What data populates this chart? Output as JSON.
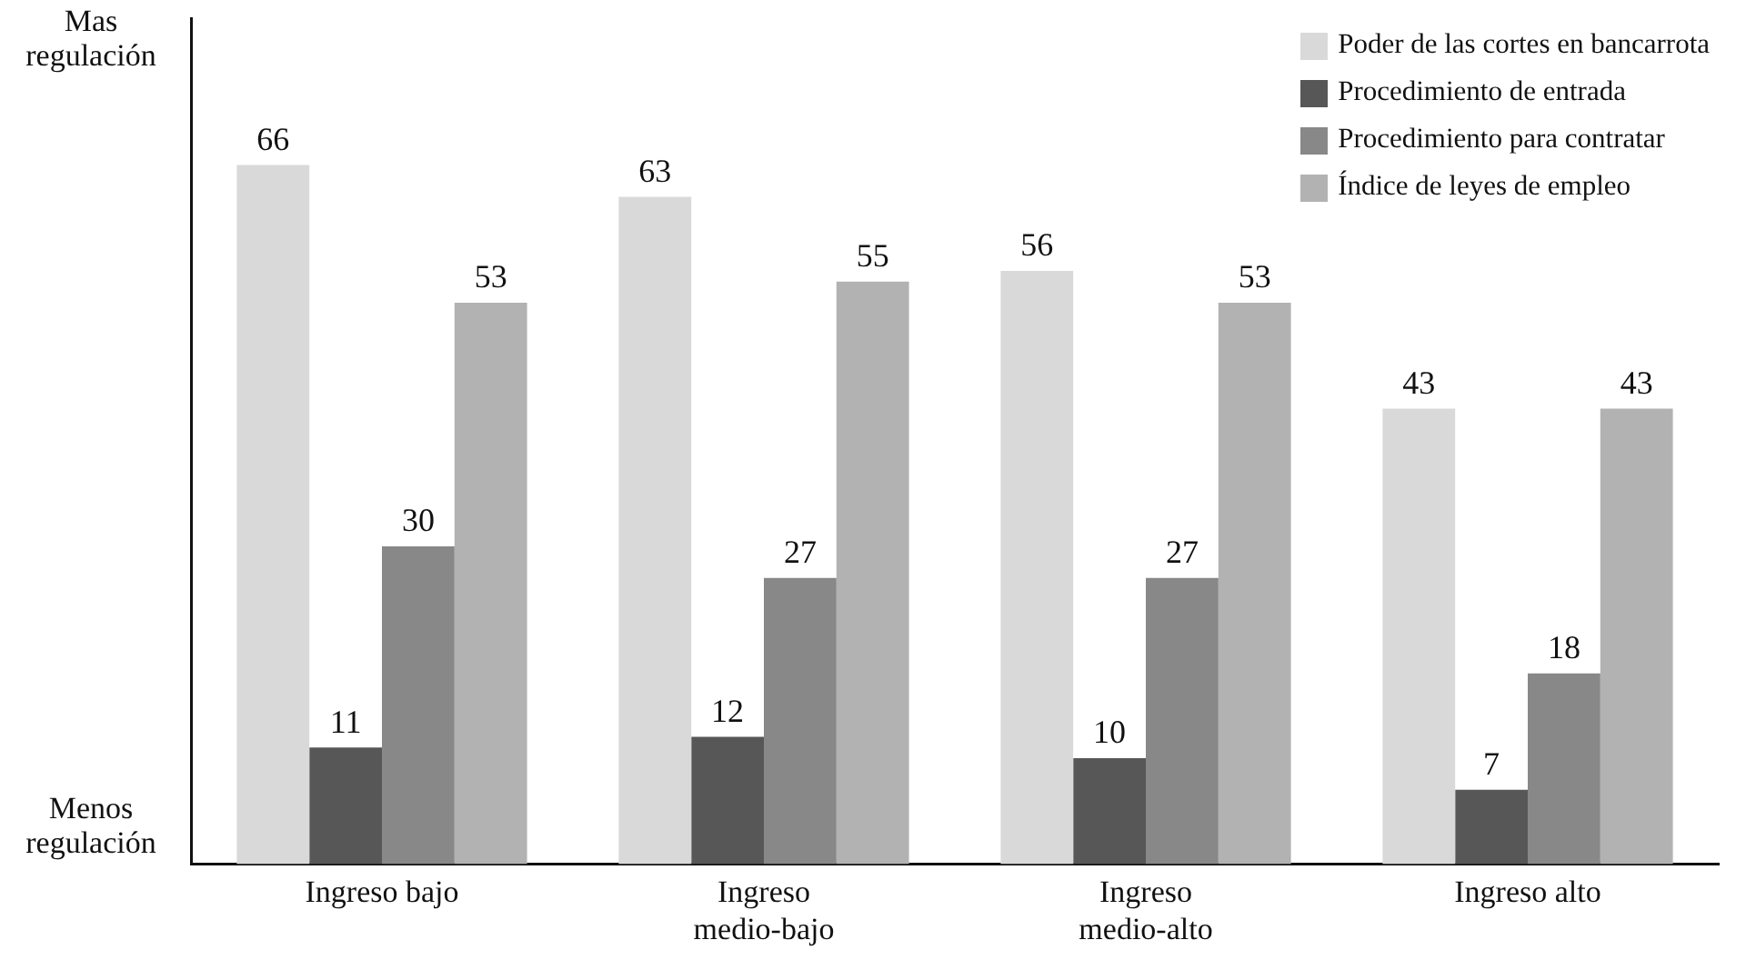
{
  "chart_data": {
    "type": "bar",
    "categories": [
      "Ingreso bajo",
      "Ingreso medio-bajo",
      "Ingreso medio-alto",
      "Ingreso alto"
    ],
    "series": [
      {
        "name": "Poder de las cortes en bancarrota",
        "color": "#d9d9d9",
        "values": [
          66,
          63,
          56,
          43
        ]
      },
      {
        "name": "Procedimiento de entrada",
        "color": "#575757",
        "values": [
          11,
          12,
          10,
          7
        ]
      },
      {
        "name": "Procedimiento para contratar",
        "color": "#888888",
        "values": [
          30,
          27,
          27,
          18
        ]
      },
      {
        "name": "Índice de leyes de empleo",
        "color": "#b2b2b2",
        "values": [
          53,
          55,
          53,
          43
        ]
      }
    ],
    "data_labels": true,
    "annotations": [
      "Mas regulación",
      "Menos regulación"
    ],
    "legend": "top right",
    "grid": false
  }
}
